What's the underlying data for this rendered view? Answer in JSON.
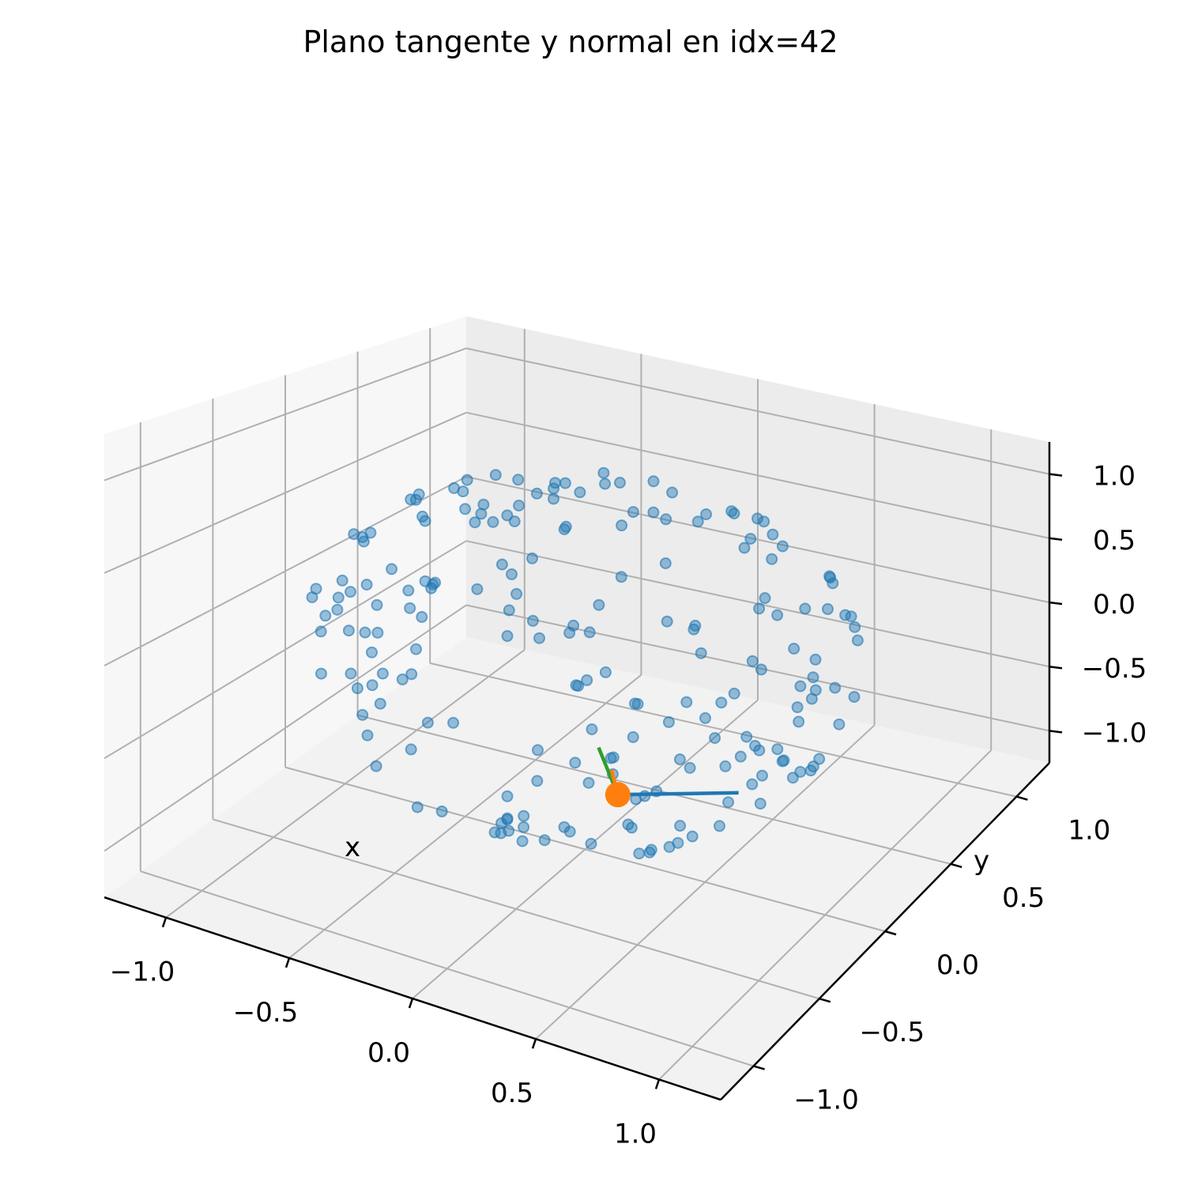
{
  "chart_data": {
    "type": "scatter3d",
    "title": "Plano tangente y normal en idx=42",
    "xlabel": "x",
    "ylabel": "y",
    "zlabel": "",
    "xlim": [
      -1.25,
      1.25
    ],
    "ylim": [
      -1.25,
      1.25
    ],
    "zlim": [
      -1.25,
      1.25
    ],
    "x_ticks": [
      "−1.0",
      "−0.5",
      "0.0",
      "0.5",
      "1.0"
    ],
    "y_ticks": [
      "−1.0",
      "−0.5",
      "0.0",
      "0.5",
      "1.0"
    ],
    "z_ticks": [
      "−1.0",
      "−0.5",
      "0.0",
      "0.5",
      "1.0"
    ],
    "grid": true,
    "point_color": "#1f77b4",
    "highlight_color": "#ff7f0e",
    "tangent1_color": "#1f77b4",
    "tangent2_color": "#2ca02c",
    "normal_color": "#ff7f0e",
    "highlight_index": 42,
    "point_count": 200
  }
}
